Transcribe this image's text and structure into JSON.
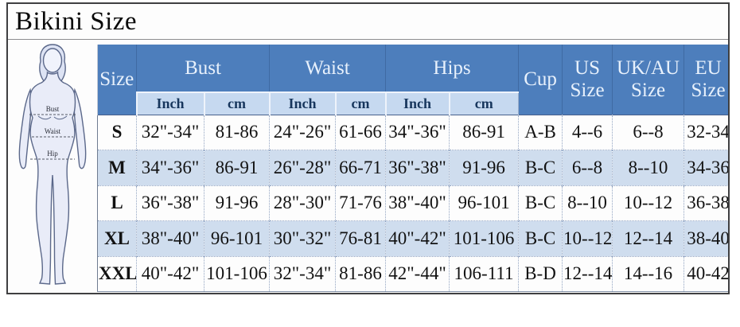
{
  "title": "Bikini Size",
  "colors": {
    "header_blue": "#4d7ebc",
    "subheader_blue": "#c6d9f0",
    "row_alt_blue": "#cfddee",
    "header_text": "#e8f1fc",
    "subheader_text": "#17365d",
    "data_text": "#121212",
    "frame_border": "#3f3f41"
  },
  "figure": {
    "bust_label": "Bust",
    "waist_label": "Waist",
    "hip_label": "Hip"
  },
  "chart_data": {
    "type": "table",
    "title": "Bikini Size",
    "column_groups": [
      {
        "label": "Size",
        "span": 1
      },
      {
        "label": "Bust",
        "span": 2
      },
      {
        "label": "Waist",
        "span": 2
      },
      {
        "label": "Hips",
        "span": 2
      },
      {
        "label": "Cup",
        "span": 1
      },
      {
        "label": "US Size",
        "span": 1
      },
      {
        "label": "UK/AU Size",
        "span": 1
      },
      {
        "label": "EU Size",
        "span": 1
      }
    ],
    "sub_headers": [
      "Inch",
      "cm",
      "Inch",
      "cm",
      "Inch",
      "cm"
    ],
    "rows": [
      {
        "size": "S",
        "bust_inch": "32\"-34\"",
        "bust_cm": "81-86",
        "waist_inch": "24\"-26\"",
        "waist_cm": "61-66",
        "hips_inch": "34\"-36\"",
        "hips_cm": "86-91",
        "cup": "A-B",
        "us_size": "4--6",
        "ukau_size": "6--8",
        "eu_size": "32-34"
      },
      {
        "size": "M",
        "bust_inch": "34\"-36\"",
        "bust_cm": "86-91",
        "waist_inch": "26\"-28\"",
        "waist_cm": "66-71",
        "hips_inch": "36\"-38\"",
        "hips_cm": "91-96",
        "cup": "B-C",
        "us_size": "6--8",
        "ukau_size": "8--10",
        "eu_size": "34-36"
      },
      {
        "size": "L",
        "bust_inch": "36\"-38\"",
        "bust_cm": "91-96",
        "waist_inch": "28\"-30\"",
        "waist_cm": "71-76",
        "hips_inch": "38\"-40\"",
        "hips_cm": "96-101",
        "cup": "B-C",
        "us_size": "8--10",
        "ukau_size": "10--12",
        "eu_size": "36-38"
      },
      {
        "size": "XL",
        "bust_inch": "38\"-40\"",
        "bust_cm": "96-101",
        "waist_inch": "30\"-32\"",
        "waist_cm": "76-81",
        "hips_inch": "40\"-42\"",
        "hips_cm": "101-106",
        "cup": "B-C",
        "us_size": "10--12",
        "ukau_size": "12--14",
        "eu_size": "38-40"
      },
      {
        "size": "XXL",
        "bust_inch": "40\"-42\"",
        "bust_cm": "101-106",
        "waist_inch": "32\"-34\"",
        "waist_cm": "81-86",
        "hips_inch": "42\"-44\"",
        "hips_cm": "106-111",
        "cup": "B-D",
        "us_size": "12--14",
        "ukau_size": "14--16",
        "eu_size": "40-42"
      }
    ]
  }
}
